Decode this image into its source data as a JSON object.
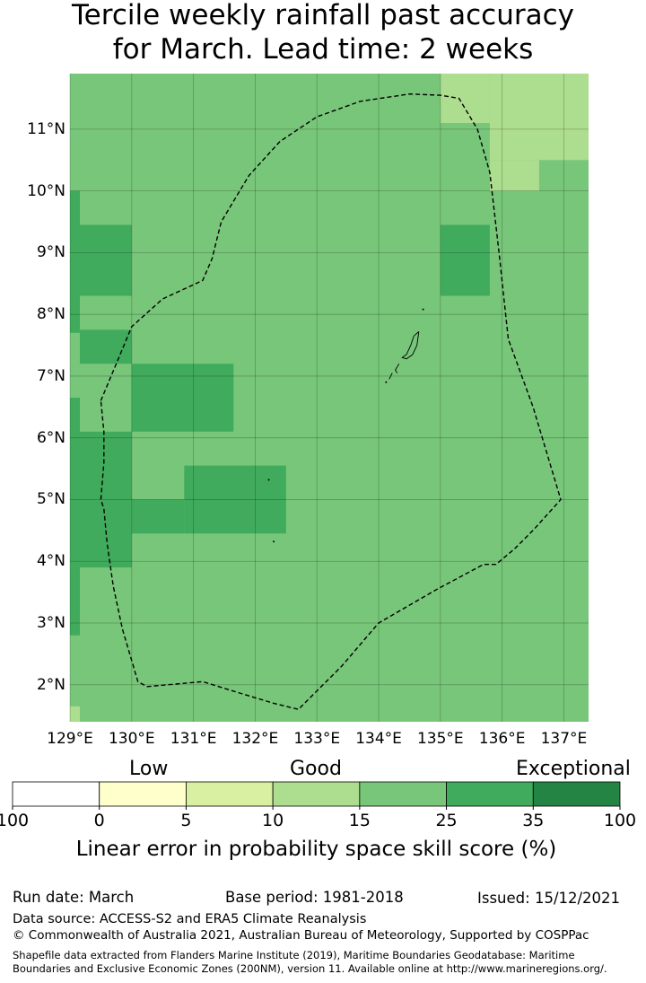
{
  "title": {
    "line1": "Tercile weekly rainfall past accuracy",
    "line2": "for March. Lead time: 2 weeks"
  },
  "colors": {
    "good_15_25": "#78c679",
    "fair_10_15": "#addd8e",
    "fair_5_10": "#d9f0a3",
    "low_0_5": "#ffffcc",
    "none": "#ffffff",
    "strong_25_35": "#41ab5d",
    "best_35_100": "#238443",
    "boundary": "#000000"
  },
  "map": {
    "lat_range": [
      1.4,
      11.9
    ],
    "lon_range": [
      129.0,
      137.4
    ],
    "grid": "on",
    "x_ticks": [
      "129°E",
      "130°E",
      "131°E",
      "132°E",
      "133°E",
      "134°E",
      "135°E",
      "136°E",
      "137°E"
    ],
    "x_tick_values": [
      129,
      130,
      131,
      132,
      133,
      134,
      135,
      136,
      137
    ],
    "y_ticks": [
      "2°N",
      "3°N",
      "4°N",
      "5°N",
      "6°N",
      "7°N",
      "8°N",
      "9°N",
      "10°N",
      "11°N"
    ],
    "y_tick_values": [
      2,
      3,
      4,
      5,
      6,
      7,
      8,
      9,
      10,
      11
    ],
    "background_class": "15-25",
    "cells": [
      {
        "lon": [
          135.0,
          135.8
        ],
        "lat": [
          11.1,
          11.9
        ],
        "class": "10-15"
      },
      {
        "lon": [
          135.8,
          137.4
        ],
        "lat": [
          10.5,
          11.9
        ],
        "class": "10-15"
      },
      {
        "lon": [
          135.8,
          136.6
        ],
        "lat": [
          10.0,
          10.5
        ],
        "class": "10-15"
      },
      {
        "lon": [
          129.0,
          129.16
        ],
        "lat": [
          1.4,
          1.65
        ],
        "class": "10-15"
      },
      {
        "lon": [
          129.0,
          129.16
        ],
        "lat": [
          7.7,
          10.0
        ],
        "class": "25-35"
      },
      {
        "lon": [
          129.16,
          130.0
        ],
        "lat": [
          8.3,
          9.45
        ],
        "class": "25-35"
      },
      {
        "lon": [
          129.16,
          130.0
        ],
        "lat": [
          7.2,
          7.75
        ],
        "class": "25-35"
      },
      {
        "lon": [
          130.0,
          131.65
        ],
        "lat": [
          6.1,
          7.2
        ],
        "class": "25-35"
      },
      {
        "lon": [
          129.0,
          129.16
        ],
        "lat": [
          2.8,
          6.65
        ],
        "class": "25-35"
      },
      {
        "lon": [
          129.16,
          130.0
        ],
        "lat": [
          3.9,
          6.1
        ],
        "class": "25-35"
      },
      {
        "lon": [
          130.0,
          130.85
        ],
        "lat": [
          4.45,
          5.0
        ],
        "class": "25-35"
      },
      {
        "lon": [
          130.85,
          132.5
        ],
        "lat": [
          4.45,
          5.55
        ],
        "class": "25-35"
      },
      {
        "lon": [
          135.0,
          135.8
        ],
        "lat": [
          8.3,
          9.45
        ],
        "class": "25-35"
      }
    ],
    "eez_boundary": [
      [
        129.5,
        6.6
      ],
      [
        130.0,
        7.8
      ],
      [
        130.5,
        8.25
      ],
      [
        131.15,
        8.55
      ],
      [
        131.3,
        8.9
      ],
      [
        131.45,
        9.5
      ],
      [
        131.9,
        10.25
      ],
      [
        132.4,
        10.8
      ],
      [
        133.0,
        11.2
      ],
      [
        133.7,
        11.45
      ],
      [
        134.5,
        11.57
      ],
      [
        135.0,
        11.55
      ],
      [
        135.3,
        11.5
      ],
      [
        135.6,
        11.0
      ],
      [
        135.8,
        10.3
      ],
      [
        135.95,
        9.0
      ],
      [
        136.1,
        7.6
      ],
      [
        136.5,
        6.5
      ],
      [
        136.95,
        5.0
      ],
      [
        136.5,
        4.5
      ],
      [
        136.2,
        4.2
      ],
      [
        135.9,
        3.95
      ],
      [
        135.7,
        3.95
      ],
      [
        134.95,
        3.55
      ],
      [
        134.0,
        3.0
      ],
      [
        133.4,
        2.3
      ],
      [
        132.7,
        1.6
      ],
      [
        132.3,
        1.7
      ],
      [
        131.8,
        1.85
      ],
      [
        131.15,
        2.05
      ],
      [
        130.25,
        1.97
      ],
      [
        130.1,
        2.05
      ],
      [
        129.85,
        2.9
      ],
      [
        129.7,
        3.6
      ],
      [
        129.6,
        4.3
      ],
      [
        129.55,
        4.85
      ],
      [
        129.5,
        5.0
      ],
      [
        129.55,
        5.6
      ],
      [
        129.55,
        6.1
      ],
      [
        129.5,
        6.6
      ]
    ],
    "islands": [
      [
        [
          134.65,
          7.72
        ],
        [
          134.57,
          7.65
        ],
        [
          134.52,
          7.5
        ],
        [
          134.45,
          7.35
        ],
        [
          134.38,
          7.3
        ],
        [
          134.45,
          7.28
        ],
        [
          134.55,
          7.35
        ],
        [
          134.62,
          7.5
        ],
        [
          134.65,
          7.72
        ]
      ],
      [
        [
          134.33,
          7.2
        ],
        [
          134.27,
          7.1
        ],
        [
          134.3,
          7.05
        ]
      ],
      [
        [
          134.22,
          7.05
        ],
        [
          134.17,
          6.95
        ]
      ]
    ],
    "dots": [
      [
        134.12,
        6.9
      ],
      [
        134.72,
        8.08
      ],
      [
        132.22,
        5.32
      ],
      [
        132.3,
        4.32
      ]
    ]
  },
  "colorbar": {
    "categories": [
      "Low",
      "Good",
      "Exceptional"
    ],
    "bounds": [
      "100",
      "0",
      "5",
      "10",
      "15",
      "25",
      "35",
      "100"
    ],
    "bins": [
      "none",
      "low_0_5",
      "fair_5_10",
      "fair_10_15",
      "good_15_25",
      "strong_25_35",
      "best_35_100"
    ],
    "label": "Linear error in probability space skill score (%)"
  },
  "footer": {
    "run_date": "Run date: March",
    "base_period": "Base period: 1981-2018",
    "issued": "Issued: 15/12/2021",
    "data_source": "Data source: ACCESS-S2 and ERA5 Climate Reanalysis",
    "copyright": "© Commonwealth of Australia 2021, Australian Bureau of Meteorology, Supported by COSPPac",
    "shapefile_line1": "Shapefile data extracted from Flanders Marine Institute (2019), Maritime Boundaries Geodatabase: Maritime",
    "shapefile_line2": "Boundaries and Exclusive Economic Zones (200NM), version 11. Available online at http://www.marineregions.org/."
  }
}
